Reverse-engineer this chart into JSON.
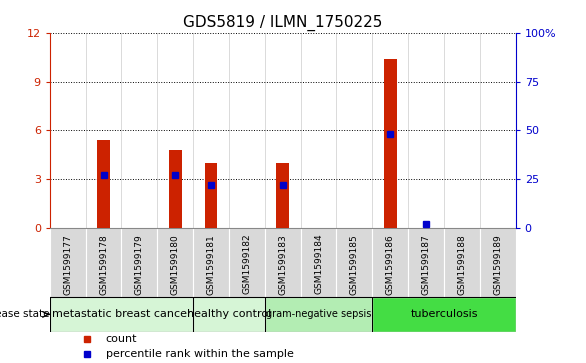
{
  "title": "GDS5819 / ILMN_1750225",
  "samples": [
    "GSM1599177",
    "GSM1599178",
    "GSM1599179",
    "GSM1599180",
    "GSM1599181",
    "GSM1599182",
    "GSM1599183",
    "GSM1599184",
    "GSM1599185",
    "GSM1599186",
    "GSM1599187",
    "GSM1599188",
    "GSM1599189"
  ],
  "counts": [
    0,
    5.4,
    0,
    4.8,
    4.0,
    0,
    4.0,
    0,
    0,
    10.4,
    0,
    0,
    0
  ],
  "percentile_ranks": [
    null,
    27,
    null,
    27,
    22,
    null,
    22,
    null,
    null,
    48,
    2,
    null,
    null
  ],
  "groups": [
    {
      "label": "metastatic breast cancer",
      "start": 0,
      "end": 4,
      "color": "#d6f5d6",
      "fontsize": 8
    },
    {
      "label": "healthy control",
      "start": 4,
      "end": 6,
      "color": "#d6f5d6",
      "fontsize": 8
    },
    {
      "label": "gram-negative sepsis",
      "start": 6,
      "end": 9,
      "color": "#b3edb3",
      "fontsize": 7
    },
    {
      "label": "tuberculosis",
      "start": 9,
      "end": 13,
      "color": "#44dd44",
      "fontsize": 8
    }
  ],
  "ylim_left": [
    0,
    12
  ],
  "ylim_right": [
    0,
    100
  ],
  "yticks_left": [
    0,
    3,
    6,
    9,
    12
  ],
  "yticks_right": [
    0,
    25,
    50,
    75,
    100
  ],
  "bar_color": "#cc2200",
  "marker_color": "#0000cc",
  "bar_width": 0.35,
  "bg_color": "#ffffff",
  "sample_bg": "#d9d9d9",
  "disease_state_label": "disease state",
  "legend_items": [
    {
      "color": "#cc2200",
      "label": "count"
    },
    {
      "color": "#0000cc",
      "label": "percentile rank within the sample"
    }
  ]
}
